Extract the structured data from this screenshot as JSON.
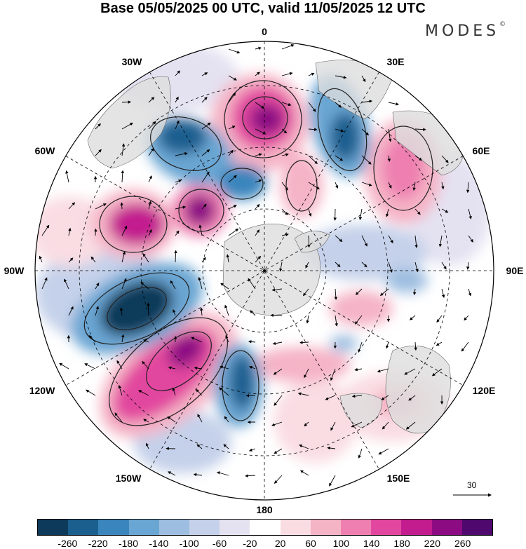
{
  "title": "Base 05/05/2025 00 UTC, valid 11/05/2025 12 UTC",
  "brand": {
    "name": "MODES",
    "mark": "©"
  },
  "longitude_labels": [
    "0",
    "30E",
    "60E",
    "90E",
    "120E",
    "150E",
    "180",
    "150W",
    "120W",
    "90W",
    "60W",
    "30W"
  ],
  "vector_scale": {
    "label": "30"
  },
  "legend": {
    "colors": [
      "#0d3a5a",
      "#1b5f8f",
      "#3b85bd",
      "#6aa6d3",
      "#9dbee0",
      "#c5d1ea",
      "#e4e2f1",
      "#ffffff",
      "#f9dde3",
      "#f5b3c6",
      "#ee7fb0",
      "#e2479f",
      "#c31c8f",
      "#8c0b83",
      "#4f096e"
    ],
    "ticks": [
      "-260",
      "-220",
      "-180",
      "-140",
      "-100",
      "-60",
      "-20",
      "20",
      "60",
      "100",
      "140",
      "180",
      "220",
      "260"
    ]
  }
}
